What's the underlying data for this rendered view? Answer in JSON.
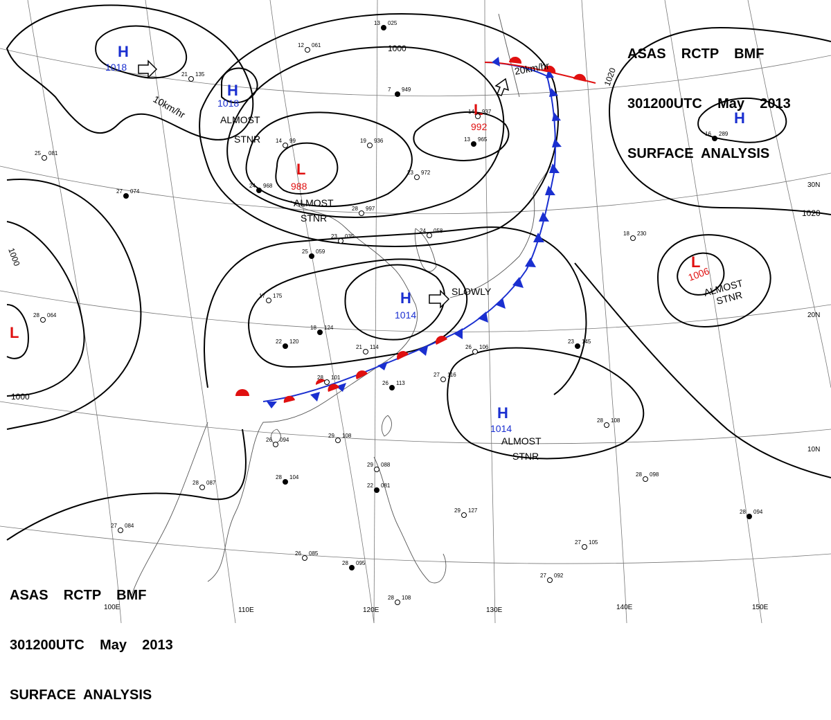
{
  "title": {
    "line1": "ASAS    RCTP    BMF",
    "line2": "301200UTC    May    2013",
    "line3": "SURFACE  ANALYSIS"
  },
  "colors": {
    "high": "#1a2fd0",
    "low": "#e01010",
    "warm_front": "#e01010",
    "cold_front": "#1a2fd0",
    "isobar": "#000000",
    "coast": "#555555",
    "grid": "#777777"
  },
  "longitude_labels": [
    "110E",
    "120E",
    "130E",
    "140E",
    "150E",
    "100E"
  ],
  "latitude_labels": [
    "30N",
    "20N",
    "10N"
  ],
  "isobar_labels": [
    "1000",
    "1000",
    "1000",
    "1020",
    "1020"
  ],
  "pressure_centers": [
    {
      "type": "high",
      "letter": "H",
      "value": "1018"
    },
    {
      "type": "high",
      "letter": "H",
      "value": "1018"
    },
    {
      "type": "low",
      "letter": "L",
      "value": "988"
    },
    {
      "type": "low",
      "letter": "L",
      "value": "992"
    },
    {
      "type": "high",
      "letter": "H",
      "value": "1014"
    },
    {
      "type": "high",
      "letter": "H",
      "value": "1014"
    },
    {
      "type": "low",
      "letter": "L",
      "value": "1006"
    },
    {
      "type": "low",
      "letter": "L",
      "value": ""
    },
    {
      "type": "high",
      "letter": "H",
      "value": ""
    }
  ],
  "annotations": {
    "motion_10": "10km/hr",
    "almost_stnr_1_a": "ALMOST",
    "almost_stnr_1_b": "STNR",
    "almost_stnr_2_a": "ALMOST",
    "almost_stnr_2_b": "STNR",
    "motion_20": "20km/hr",
    "slowly": "SLOWLY",
    "almost_stnr_3_a": "ALMOST",
    "almost_stnr_3_b": "STNR",
    "almost_stnr_4_a": "ALMOST",
    "almost_stnr_4_b": "STNR"
  },
  "station_plots": [
    {
      "t": "13",
      "p": "025"
    },
    {
      "t": "12",
      "p": "061"
    },
    {
      "t": "21",
      "p": "135"
    },
    {
      "t": "7",
      "p": "949"
    },
    {
      "t": "14",
      "p": "937"
    },
    {
      "t": "19",
      "p": "936"
    },
    {
      "t": "13",
      "p": "965"
    },
    {
      "t": "23",
      "p": "972"
    },
    {
      "t": "14",
      "p": "99"
    },
    {
      "t": "24",
      "p": "968"
    },
    {
      "t": "28",
      "p": "997"
    },
    {
      "t": "23",
      "p": "035"
    },
    {
      "t": "25",
      "p": "059"
    },
    {
      "t": "24",
      "p": "058"
    },
    {
      "t": "17",
      "p": "175"
    },
    {
      "t": "18",
      "p": "124"
    },
    {
      "t": "21",
      "p": "114"
    },
    {
      "t": "28",
      "p": "101"
    },
    {
      "t": "26",
      "p": "113"
    },
    {
      "t": "27",
      "p": "116"
    },
    {
      "t": "26",
      "p": "106"
    },
    {
      "t": "22",
      "p": "120"
    },
    {
      "t": "26",
      "p": "094"
    },
    {
      "t": "28",
      "p": "087"
    },
    {
      "t": "28",
      "p": "104"
    },
    {
      "t": "29",
      "p": "108"
    },
    {
      "t": "29",
      "p": "088"
    },
    {
      "t": "22",
      "p": "081"
    },
    {
      "t": "27",
      "p": "084"
    },
    {
      "t": "26",
      "p": "085"
    },
    {
      "t": "28",
      "p": "095"
    },
    {
      "t": "28",
      "p": "108"
    },
    {
      "t": "29",
      "p": "127"
    },
    {
      "t": "23",
      "p": "145"
    },
    {
      "t": "28",
      "p": "108"
    },
    {
      "t": "28",
      "p": "098"
    },
    {
      "t": "28",
      "p": "094"
    },
    {
      "t": "27",
      "p": "105"
    },
    {
      "t": "27",
      "p": "092"
    },
    {
      "t": "16",
      "p": "289"
    },
    {
      "t": "18",
      "p": "230"
    },
    {
      "t": "25",
      "p": "081"
    },
    {
      "t": "27",
      "p": "074"
    },
    {
      "t": "28",
      "p": "064"
    }
  ]
}
